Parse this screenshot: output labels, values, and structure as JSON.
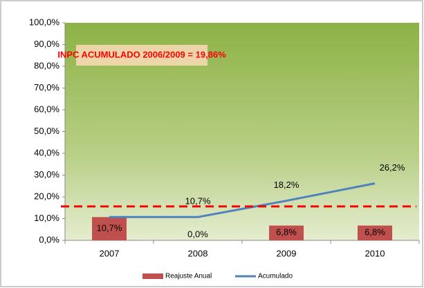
{
  "chart_data": {
    "type": "bar_line",
    "annotation": "INPC ACUMULADO 2006/2009 = 19,86%",
    "categories": [
      "2007",
      "2008",
      "2009",
      "2010"
    ],
    "series": [
      {
        "name": "Reajuste Anual",
        "type": "bar",
        "color": "#c0504d",
        "values": [
          10.7,
          0.0,
          6.8,
          6.8
        ],
        "value_labels": [
          "10,7%",
          "0,0%",
          "6,8%",
          "6,8%"
        ]
      },
      {
        "name": "Acumulado",
        "type": "line",
        "color": "#4f81bd",
        "values": [
          10.7,
          10.7,
          18.2,
          26.2
        ],
        "value_labels": [
          null,
          "10,7%",
          "18,2%",
          "26,2%"
        ]
      }
    ],
    "reference_line": {
      "value": 15.6,
      "color": "#ff0000"
    },
    "ylim": [
      0,
      100
    ],
    "yticks": [
      {
        "value": 0,
        "label": "0,0%"
      },
      {
        "value": 10,
        "label": "10,0%"
      },
      {
        "value": 20,
        "label": "20,0%"
      },
      {
        "value": 30,
        "label": "30,0%"
      },
      {
        "value": 40,
        "label": "40,0%"
      },
      {
        "value": 50,
        "label": "50,0%"
      },
      {
        "value": 60,
        "label": "60,0%"
      },
      {
        "value": 70,
        "label": "70,0%"
      },
      {
        "value": 80,
        "label": "80,0%"
      },
      {
        "value": 90,
        "label": "90,0%"
      },
      {
        "value": 100,
        "label": "100,0%"
      }
    ],
    "legend": "bottom"
  }
}
